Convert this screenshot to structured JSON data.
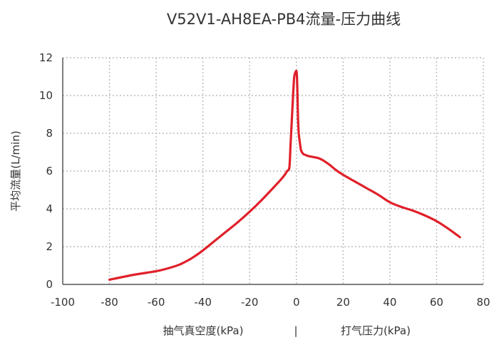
{
  "chart_data": {
    "type": "line",
    "title": "V52V1-AH8EA-PB4流量-压力曲线",
    "ylabel": "平均流量(L/min)",
    "xlabel_left": "抽气真空度(kPa)",
    "xlabel_separator": "|",
    "xlabel_right": "打气压力(kPa)",
    "xlim": [
      -100,
      80
    ],
    "ylim": [
      0,
      12
    ],
    "x_ticks": [
      -100,
      -80,
      -60,
      -40,
      -20,
      0,
      20,
      40,
      60,
      80
    ],
    "y_ticks": [
      0,
      2,
      4,
      6,
      8,
      10,
      12
    ],
    "grid": true,
    "line_color": "#e0202a",
    "series": [
      {
        "x": [
          -80,
          -70,
          -60,
          -55,
          -50,
          -46,
          -44,
          -40,
          -35,
          -30,
          -25,
          -20,
          -15,
          -10,
          -7,
          -5,
          -4,
          -3,
          -2.5,
          -2,
          -1.5,
          -1,
          -0.5,
          0,
          0.2,
          0.4,
          0.5,
          0.7,
          1,
          1.5,
          2,
          3,
          4,
          5,
          7,
          9,
          11,
          14,
          17,
          20,
          25,
          30,
          35,
          40,
          45,
          50,
          55,
          60,
          65,
          70
        ],
        "y": [
          0.25,
          0.5,
          0.7,
          0.85,
          1.05,
          1.3,
          1.45,
          1.8,
          2.3,
          2.8,
          3.3,
          3.85,
          4.45,
          5.1,
          5.5,
          5.8,
          6.0,
          6.2,
          7.4,
          8.6,
          9.8,
          10.9,
          11.2,
          11.3,
          11.1,
          10.4,
          9.8,
          8.8,
          8.0,
          7.5,
          7.1,
          6.9,
          6.85,
          6.8,
          6.75,
          6.7,
          6.6,
          6.35,
          6.05,
          5.8,
          5.45,
          5.1,
          4.75,
          4.35,
          4.1,
          3.9,
          3.65,
          3.35,
          2.95,
          2.5
        ]
      }
    ]
  }
}
